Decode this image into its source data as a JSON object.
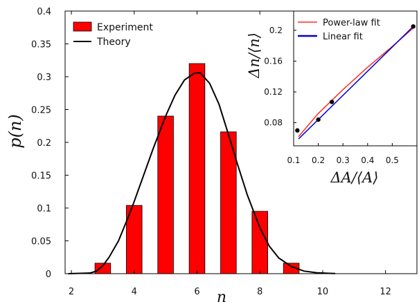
{
  "chart_data": [
    {
      "type": "bar",
      "xlabel": "n",
      "ylabel": "p(n)",
      "xlim": [
        1.8,
        13
      ],
      "ylim": [
        0,
        0.4
      ],
      "x_ticks": [
        "2",
        "4",
        "6",
        "8",
        "10",
        "12"
      ],
      "y_ticks": [
        "0",
        "0.05",
        "0.1",
        "0.15",
        "0.2",
        "0.25",
        "0.3",
        "0.35",
        "0.4"
      ],
      "legend": {
        "placement": "top-left",
        "entries": [
          "Experiment",
          "Theory"
        ]
      },
      "series": [
        {
          "name": "Experiment",
          "type": "bar",
          "color": "#ff0000",
          "x": [
            3,
            4,
            5,
            6,
            7,
            8,
            9
          ],
          "values": [
            0.016,
            0.104,
            0.24,
            0.32,
            0.216,
            0.095,
            0.016
          ]
        },
        {
          "name": "Theory",
          "type": "line",
          "color": "#000000",
          "x": [
            2.6,
            2.8,
            3.0,
            3.2,
            3.5,
            3.8,
            4.0,
            4.3,
            4.6,
            5.0,
            5.3,
            5.6,
            5.9,
            6.1,
            6.4,
            6.7,
            7.0,
            7.3,
            7.6,
            8.0,
            8.3,
            8.6,
            9.0,
            9.4,
            9.8,
            10.2,
            10.4
          ],
          "values": [
            0.001,
            0.004,
            0.012,
            0.025,
            0.05,
            0.085,
            0.11,
            0.15,
            0.19,
            0.24,
            0.272,
            0.295,
            0.305,
            0.306,
            0.29,
            0.258,
            0.212,
            0.165,
            0.12,
            0.07,
            0.042,
            0.024,
            0.011,
            0.004,
            0.0015,
            0.0005,
            0.0002
          ]
        }
      ]
    },
    {
      "type": "line",
      "xlabel": "ΔA/⟨A⟩",
      "ylabel": "Δn/⟨n⟩",
      "xlim": [
        0.1,
        0.6
      ],
      "ylim": [
        0.05,
        0.225
      ],
      "x_ticks": [
        "0.1",
        "0.2",
        "0.3",
        "0.4",
        "0.5"
      ],
      "y_ticks": [
        "0.08",
        "0.12",
        "0.16",
        "0.2"
      ],
      "legend": {
        "placement": "top-right",
        "entries": [
          "Power-law fit",
          "Linear fit"
        ]
      },
      "series": [
        {
          "name": "Power-law fit",
          "type": "line",
          "color": "#ff2a2a",
          "x": [
            0.12,
            0.2,
            0.3,
            0.4,
            0.5,
            0.585
          ],
          "values": [
            0.062,
            0.092,
            0.123,
            0.152,
            0.179,
            0.203
          ]
        },
        {
          "name": "Linear fit",
          "type": "line",
          "color": "#0000cc",
          "x": [
            0.12,
            0.585
          ],
          "values": [
            0.059,
            0.205
          ]
        },
        {
          "type": "scatter",
          "color": "#000000",
          "x": [
            0.115,
            0.2,
            0.255,
            0.585
          ],
          "values": [
            0.07,
            0.084,
            0.107,
            0.205
          ]
        }
      ]
    }
  ]
}
